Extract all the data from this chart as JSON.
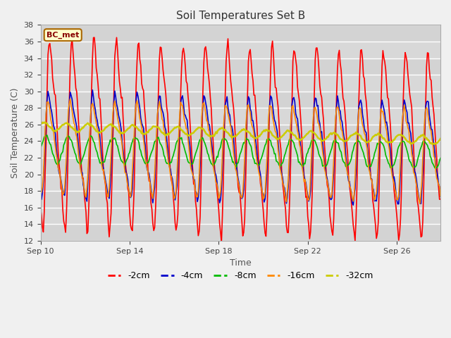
{
  "title": "Soil Temperatures Set B",
  "xlabel": "Time",
  "ylabel": "Soil Temperature (C)",
  "ylim": [
    12,
    38
  ],
  "yticks": [
    12,
    14,
    16,
    18,
    20,
    22,
    24,
    26,
    28,
    30,
    32,
    34,
    36,
    38
  ],
  "plot_bg_color": "#d8d8d8",
  "fig_bg_color": "#f0f0f0",
  "annotation_text": "BC_met",
  "annotation_bg": "#ffffcc",
  "annotation_border": "#aa6600",
  "annotation_text_color": "#880000",
  "legend_items": [
    "-2cm",
    "-4cm",
    "-8cm",
    "-16cm",
    "-32cm"
  ],
  "line_colors": [
    "#ff0000",
    "#0000cc",
    "#00bb00",
    "#ff8800",
    "#cccc00"
  ],
  "line_widths": [
    1.2,
    1.2,
    1.2,
    1.2,
    1.8
  ],
  "xtick_labels": [
    "Sep 10",
    "Sep 14",
    "Sep 18",
    "Sep 22",
    "Sep 26"
  ],
  "xtick_positions": [
    0,
    96,
    192,
    288,
    384
  ],
  "total_points": 432
}
